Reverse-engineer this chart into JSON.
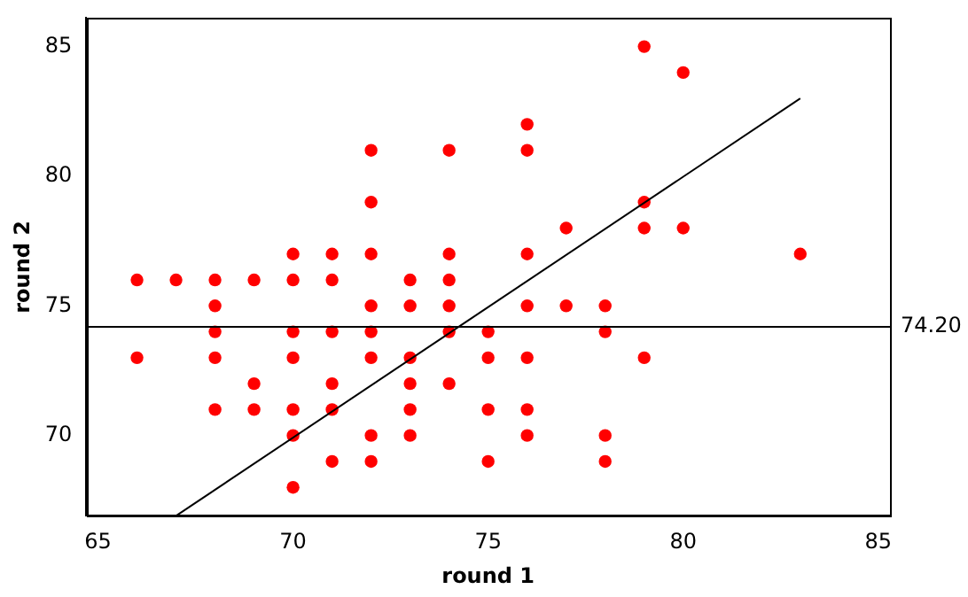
{
  "chart_data": {
    "type": "scatter",
    "xlabel": "round 1",
    "ylabel": "round 2",
    "xlim": [
      64.7,
      85.3
    ],
    "ylim": [
      66.9,
      86.1
    ],
    "xticks": [
      65,
      70,
      75,
      80,
      85
    ],
    "yticks": [
      70,
      75,
      80,
      85
    ],
    "grid": false,
    "legend": false,
    "marker": "circle",
    "series": [
      {
        "color": "#ff0000",
        "x": [
          79,
          80,
          76,
          72,
          74,
          76,
          72,
          79,
          77,
          79,
          80,
          70,
          71,
          72,
          74,
          76,
          83,
          66,
          67,
          68,
          69,
          70,
          71,
          73,
          74,
          68,
          72,
          73,
          74,
          76,
          77,
          78,
          68,
          70,
          71,
          72,
          74,
          75,
          78,
          66,
          68,
          70,
          72,
          73,
          75,
          76,
          79,
          69,
          71,
          73,
          74,
          68,
          69,
          70,
          71,
          73,
          75,
          76,
          70,
          72,
          73,
          76,
          78,
          71,
          72,
          75,
          78,
          70
        ],
        "values": [
          85,
          84,
          82,
          81,
          81,
          81,
          79,
          79,
          78,
          78,
          78,
          77,
          77,
          77,
          77,
          77,
          77,
          76,
          76,
          76,
          76,
          76,
          76,
          76,
          76,
          75,
          75,
          75,
          75,
          75,
          75,
          75,
          74,
          74,
          74,
          74,
          74,
          74,
          74,
          73,
          73,
          73,
          73,
          73,
          73,
          73,
          73,
          72,
          72,
          72,
          72,
          71,
          71,
          71,
          71,
          71,
          71,
          71,
          70,
          70,
          70,
          70,
          70,
          69,
          69,
          69,
          69,
          68
        ]
      },
      {
        "type": "line",
        "color": "#000000",
        "marker": "none",
        "x": [
          67,
          83
        ],
        "values": [
          66.9,
          83
        ]
      }
    ],
    "ref_lines": [
      {
        "axis": "y",
        "value": 74.2,
        "label": "74.20",
        "color": "#000000"
      }
    ]
  }
}
